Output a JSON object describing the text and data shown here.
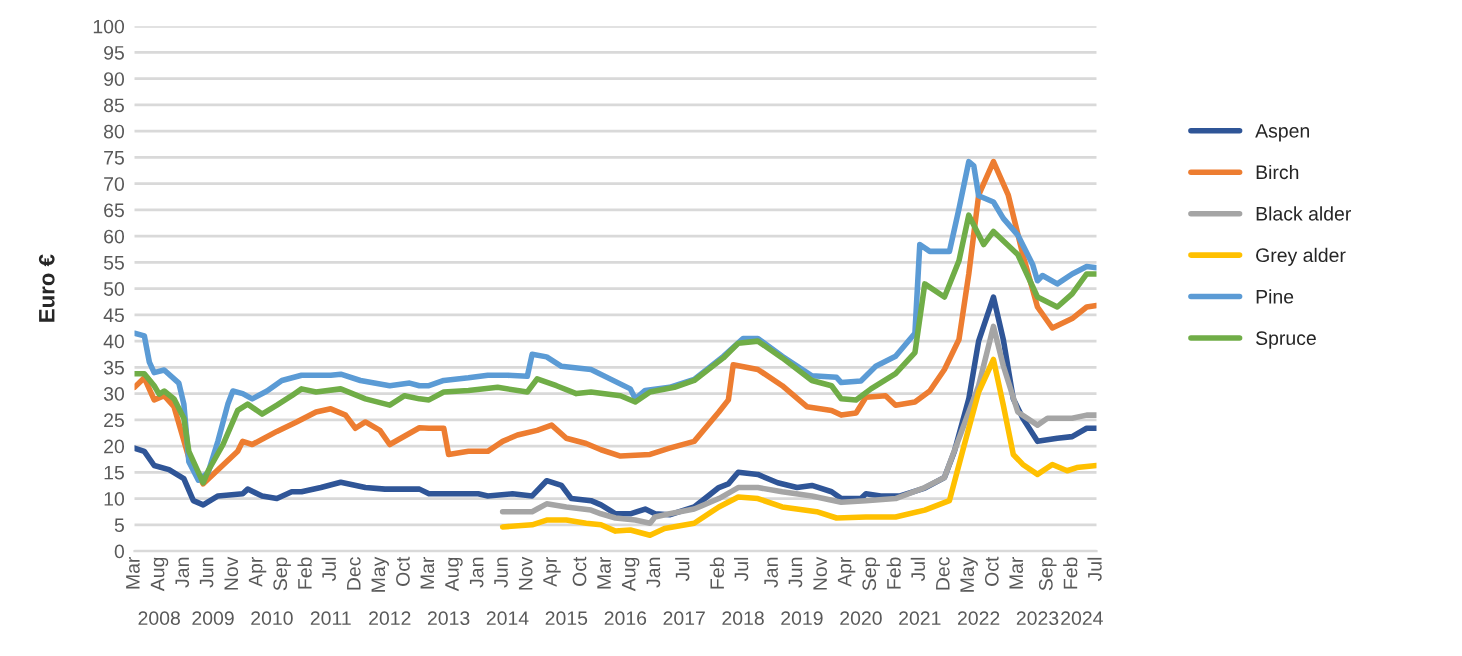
{
  "chart_data": {
    "type": "line",
    "ylabel": "Euro €",
    "ylim": [
      0,
      100
    ],
    "yticks": [
      0,
      5,
      10,
      15,
      20,
      25,
      30,
      35,
      40,
      45,
      50,
      55,
      60,
      65,
      70,
      75,
      80,
      85,
      90,
      95,
      100
    ],
    "xlim": [
      "2008-03",
      "2024-07"
    ],
    "xticks": [
      {
        "value": "2008-03",
        "label": "Mar"
      },
      {
        "value": "2008-08",
        "label": "Aug"
      },
      {
        "value": "2009-01",
        "label": "Jan"
      },
      {
        "value": "2009-06",
        "label": "Jun"
      },
      {
        "value": "2009-11",
        "label": "Nov"
      },
      {
        "value": "2010-04",
        "label": "Apr"
      },
      {
        "value": "2010-09",
        "label": "Sep"
      },
      {
        "value": "2011-02",
        "label": "Feb"
      },
      {
        "value": "2011-07",
        "label": "Jul"
      },
      {
        "value": "2011-12",
        "label": "Dec"
      },
      {
        "value": "2012-05",
        "label": "May"
      },
      {
        "value": "2012-10",
        "label": "Oct"
      },
      {
        "value": "2013-03",
        "label": "Mar"
      },
      {
        "value": "2013-08",
        "label": "Aug"
      },
      {
        "value": "2014-01",
        "label": "Jan"
      },
      {
        "value": "2014-06",
        "label": "Jun"
      },
      {
        "value": "2014-11",
        "label": "Nov"
      },
      {
        "value": "2015-04",
        "label": "Apr"
      },
      {
        "value": "2015-10",
        "label": "Oct"
      },
      {
        "value": "2016-03",
        "label": "Mar"
      },
      {
        "value": "2016-08",
        "label": "Aug"
      },
      {
        "value": "2017-01",
        "label": "Jan"
      },
      {
        "value": "2017-07",
        "label": "Jul"
      },
      {
        "value": "2018-02",
        "label": "Feb"
      },
      {
        "value": "2018-07",
        "label": "Jul"
      },
      {
        "value": "2019-01",
        "label": "Jan"
      },
      {
        "value": "2019-06",
        "label": "Jun"
      },
      {
        "value": "2019-11",
        "label": "Nov"
      },
      {
        "value": "2020-04",
        "label": "Apr"
      },
      {
        "value": "2020-09",
        "label": "Sep"
      },
      {
        "value": "2021-02",
        "label": "Feb"
      },
      {
        "value": "2021-07",
        "label": "Jul"
      },
      {
        "value": "2021-12",
        "label": "Dec"
      },
      {
        "value": "2022-05",
        "label": "May"
      },
      {
        "value": "2022-10",
        "label": "Oct"
      },
      {
        "value": "2023-03",
        "label": "Mar"
      },
      {
        "value": "2023-09",
        "label": "Sep"
      },
      {
        "value": "2024-02",
        "label": "Feb"
      },
      {
        "value": "2024-07",
        "label": "Jul"
      }
    ],
    "x2lim": [
      "2008-03",
      "2024-07"
    ],
    "x2ticks": [
      {
        "value": "2008-08",
        "label": "2008"
      },
      {
        "value": "2009-07",
        "label": "2009"
      },
      {
        "value": "2010-07",
        "label": "2010"
      },
      {
        "value": "2011-07",
        "label": "2011"
      },
      {
        "value": "2012-07",
        "label": "2012"
      },
      {
        "value": "2013-07",
        "label": "2013"
      },
      {
        "value": "2014-07",
        "label": "2014"
      },
      {
        "value": "2015-07",
        "label": "2015"
      },
      {
        "value": "2016-07",
        "label": "2016"
      },
      {
        "value": "2017-07",
        "label": "2017"
      },
      {
        "value": "2018-07",
        "label": "2018"
      },
      {
        "value": "2019-07",
        "label": "2019"
      },
      {
        "value": "2020-07",
        "label": "2020"
      },
      {
        "value": "2021-07",
        "label": "2021"
      },
      {
        "value": "2022-07",
        "label": "2022"
      },
      {
        "value": "2023-07",
        "label": "2023"
      },
      {
        "value": "2024-04",
        "label": "2024"
      }
    ],
    "grid": "y",
    "legend": "right",
    "marker": "none",
    "line_style": "solid",
    "series": [
      {
        "name": "Aspen",
        "color": "#2f5597",
        "x": [
          "2008-03",
          "2008-05",
          "2008-07",
          "2008-10",
          "2009-01",
          "2009-03",
          "2009-05",
          "2009-08",
          "2010-01",
          "2010-02",
          "2010-05",
          "2010-08",
          "2010-11",
          "2011-01",
          "2011-05",
          "2011-09",
          "2012-02",
          "2012-06",
          "2013-01",
          "2013-03",
          "2014-01",
          "2014-03",
          "2014-08",
          "2014-12",
          "2015-03",
          "2015-06",
          "2015-08",
          "2015-12",
          "2016-02",
          "2016-05",
          "2016-08",
          "2016-11",
          "2017-01",
          "2017-04",
          "2017-09",
          "2018-02",
          "2018-04",
          "2018-06",
          "2018-10",
          "2019-02",
          "2019-06",
          "2019-09",
          "2020-01",
          "2020-03",
          "2020-07",
          "2020-08",
          "2020-11",
          "2021-03",
          "2021-08",
          "2021-12",
          "2022-02",
          "2022-05",
          "2022-07",
          "2022-10",
          "2022-12",
          "2023-02",
          "2023-04",
          "2023-07",
          "2023-11",
          "2024-02",
          "2024-05",
          "2024-07"
        ],
        "values": [
          19.6,
          19,
          16.3,
          15.5,
          13.8,
          9.6,
          8.8,
          10.5,
          10.9,
          11.8,
          10.5,
          10,
          11.3,
          11.3,
          12.1,
          13.1,
          12.1,
          11.8,
          11.8,
          10.9,
          10.9,
          10.5,
          10.9,
          10.5,
          13.4,
          12.5,
          10,
          9.6,
          8.8,
          7.1,
          7.1,
          8,
          7.1,
          6.9,
          8.4,
          12.1,
          12.8,
          15,
          14.6,
          13,
          12.1,
          12.5,
          11.3,
          10,
          10,
          10.9,
          10.5,
          10.5,
          12,
          14,
          19,
          29,
          40,
          48.4,
          40.3,
          29,
          25.3,
          20.9,
          21.5,
          21.8,
          23.4,
          23.4
        ]
      },
      {
        "name": "Birch",
        "color": "#ed7d31",
        "x": [
          "2008-03",
          "2008-05",
          "2008-07",
          "2008-09",
          "2008-11",
          "2009-02",
          "2009-05",
          "2009-08",
          "2009-12",
          "2010-01",
          "2010-03",
          "2010-08",
          "2010-12",
          "2011-04",
          "2011-07",
          "2011-10",
          "2011-12",
          "2012-02",
          "2012-05",
          "2012-07",
          "2013-01",
          "2013-03",
          "2013-06",
          "2013-07",
          "2013-11",
          "2014-03",
          "2014-06",
          "2014-09",
          "2015-01",
          "2015-04",
          "2015-07",
          "2015-11",
          "2016-02",
          "2016-06",
          "2016-12",
          "2017-04",
          "2017-09",
          "2018-02",
          "2018-04",
          "2018-05",
          "2018-10",
          "2019-03",
          "2019-08",
          "2020-01",
          "2020-03",
          "2020-06",
          "2020-08",
          "2020-12",
          "2021-02",
          "2021-06",
          "2021-09",
          "2021-12",
          "2022-03",
          "2022-05",
          "2022-07",
          "2022-10",
          "2023-01",
          "2023-04",
          "2023-07",
          "2023-10",
          "2024-02",
          "2024-05",
          "2024-07"
        ],
        "values": [
          31.2,
          33,
          28.8,
          29.6,
          27.5,
          17.8,
          12.8,
          15.5,
          19,
          20.9,
          20.3,
          22.8,
          24.6,
          26.5,
          27.1,
          25.9,
          23.4,
          24.6,
          23,
          20.3,
          23.5,
          23.4,
          23.4,
          18.4,
          19,
          19,
          20.9,
          22.1,
          23,
          24,
          21.5,
          20.5,
          19.3,
          18.1,
          18.4,
          19.6,
          20.9,
          26.5,
          28.8,
          35.5,
          34.6,
          31.5,
          27.5,
          26.8,
          25.9,
          26.3,
          29.3,
          29.6,
          27.8,
          28.4,
          30.5,
          34.6,
          40.3,
          52.8,
          67.8,
          74.2,
          67.8,
          56.5,
          46.5,
          42.5,
          44.3,
          46.5,
          46.8
        ]
      },
      {
        "name": "Black alder",
        "color": "#a5a5a5",
        "x": [
          "2014-06",
          "2014-12",
          "2015-01",
          "2015-03",
          "2015-07",
          "2015-12",
          "2016-02",
          "2016-05",
          "2016-09",
          "2016-12",
          "2017-01",
          "2017-04",
          "2017-09",
          "2018-02",
          "2018-06",
          "2018-10",
          "2019-03",
          "2019-09",
          "2020-03",
          "2020-08",
          "2021-02",
          "2021-08",
          "2021-12",
          "2022-04",
          "2022-07",
          "2022-10",
          "2022-12",
          "2023-03",
          "2023-07",
          "2023-09",
          "2024-02",
          "2024-05",
          "2024-07"
        ],
        "values": [
          7.5,
          7.5,
          8,
          9,
          8.4,
          7.8,
          7.1,
          6.3,
          5.9,
          5.3,
          6.5,
          7.1,
          8,
          10,
          12.1,
          12.1,
          11.3,
          10.5,
          9.3,
          9.6,
          10,
          12.1,
          14,
          24,
          31.5,
          42.8,
          35.3,
          26.5,
          24,
          25.3,
          25.3,
          25.9,
          25.9
        ]
      },
      {
        "name": "Grey alder",
        "color": "#ffc000",
        "x": [
          "2014-06",
          "2014-12",
          "2015-03",
          "2015-07",
          "2015-11",
          "2016-02",
          "2016-05",
          "2016-08",
          "2016-12",
          "2017-03",
          "2017-09",
          "2018-02",
          "2018-06",
          "2018-10",
          "2019-03",
          "2019-10",
          "2020-02",
          "2020-08",
          "2020-10",
          "2021-02",
          "2021-08",
          "2022-01",
          "2022-04",
          "2022-07",
          "2022-10",
          "2022-12",
          "2023-02",
          "2023-04",
          "2023-07",
          "2023-10",
          "2024-01",
          "2024-03",
          "2024-07"
        ],
        "values": [
          4.6,
          5,
          5.9,
          5.9,
          5.3,
          5,
          3.8,
          4,
          3,
          4.3,
          5.3,
          8.4,
          10.3,
          10,
          8.4,
          7.5,
          6.3,
          6.5,
          6.5,
          6.5,
          7.8,
          9.6,
          20,
          30.3,
          36.5,
          27.8,
          18.4,
          16.5,
          14.6,
          16.5,
          15.3,
          15.9,
          16.3
        ]
      },
      {
        "name": "Pine",
        "color": "#5b9bd5",
        "x": [
          "2008-03",
          "2008-05",
          "2008-06",
          "2008-07",
          "2008-09",
          "2008-12",
          "2009-01",
          "2009-02",
          "2009-04",
          "2009-06",
          "2009-08",
          "2009-10",
          "2009-11",
          "2010-01",
          "2010-03",
          "2010-06",
          "2010-09",
          "2011-01",
          "2011-07",
          "2011-09",
          "2012-01",
          "2012-07",
          "2012-11",
          "2013-01",
          "2013-03",
          "2013-06",
          "2013-11",
          "2014-03",
          "2014-07",
          "2014-11",
          "2014-12",
          "2015-03",
          "2015-06",
          "2015-12",
          "2016-08",
          "2016-09",
          "2016-11",
          "2017-04",
          "2017-09",
          "2018-03",
          "2018-07",
          "2018-10",
          "2019-03",
          "2019-09",
          "2020-02",
          "2020-03",
          "2020-07",
          "2020-10",
          "2021-02",
          "2021-06",
          "2021-07",
          "2021-09",
          "2022-01",
          "2022-03",
          "2022-05",
          "2022-06",
          "2022-07",
          "2022-10",
          "2022-12",
          "2023-03",
          "2023-06",
          "2023-07",
          "2023-08",
          "2023-11",
          "2024-02",
          "2024-05",
          "2024-07"
        ],
        "values": [
          41.5,
          41,
          36,
          34,
          34.5,
          32,
          28,
          17,
          13.5,
          15,
          21,
          28,
          30.5,
          30,
          29,
          30.5,
          32.5,
          33.5,
          33.5,
          33.7,
          32.5,
          31.5,
          32,
          31.5,
          31.5,
          32.5,
          33,
          33.5,
          33.5,
          33.3,
          37.5,
          37,
          35.2,
          34.6,
          30.9,
          29,
          30.6,
          31.2,
          32.7,
          37.1,
          40.5,
          40.5,
          37.1,
          33.4,
          33.1,
          32.1,
          32.4,
          35.2,
          37.1,
          41.5,
          58.4,
          57.1,
          57.1,
          65.2,
          74.2,
          73.4,
          67.7,
          66.5,
          63.4,
          60.2,
          54.6,
          51.5,
          52.5,
          50.9,
          52.8,
          54.2,
          54
        ]
      },
      {
        "name": "Spruce",
        "color": "#70ad47",
        "x": [
          "2008-03",
          "2008-05",
          "2008-07",
          "2008-08",
          "2008-09",
          "2008-11",
          "2009-01",
          "2009-02",
          "2009-05",
          "2009-06",
          "2009-09",
          "2009-12",
          "2010-02",
          "2010-05",
          "2010-08",
          "2010-11",
          "2011-01",
          "2011-04",
          "2011-09",
          "2012-02",
          "2012-07",
          "2012-10",
          "2013-01",
          "2013-03",
          "2013-06",
          "2013-11",
          "2014-05",
          "2014-11",
          "2015-01",
          "2015-05",
          "2015-09",
          "2015-12",
          "2016-06",
          "2016-09",
          "2016-12",
          "2017-05",
          "2017-09",
          "2018-03",
          "2018-06",
          "2018-10",
          "2019-03",
          "2019-09",
          "2020-01",
          "2020-03",
          "2020-06",
          "2020-09",
          "2021-02",
          "2021-06",
          "2021-08",
          "2021-12",
          "2022-03",
          "2022-05",
          "2022-08",
          "2022-10",
          "2023-03",
          "2023-07",
          "2023-11",
          "2024-02",
          "2024-05",
          "2024-07"
        ],
        "values": [
          33.8,
          33.8,
          31.5,
          29.9,
          30.5,
          29,
          25.3,
          19,
          13,
          15.3,
          20.3,
          26.8,
          28,
          26.1,
          27.8,
          29.6,
          30.9,
          30.3,
          30.9,
          29,
          27.8,
          29.6,
          29,
          28.8,
          30.3,
          30.6,
          31.2,
          30.3,
          32.8,
          31.5,
          30,
          30.3,
          29.6,
          28.4,
          30.3,
          31.2,
          32.5,
          36.8,
          39.6,
          40,
          36.8,
          32.5,
          31.5,
          29,
          28.8,
          30.9,
          33.8,
          37.8,
          50.9,
          48.4,
          55.3,
          64,
          58.4,
          60.9,
          56.5,
          48.4,
          46.5,
          49,
          52.8,
          52.8
        ]
      }
    ]
  }
}
